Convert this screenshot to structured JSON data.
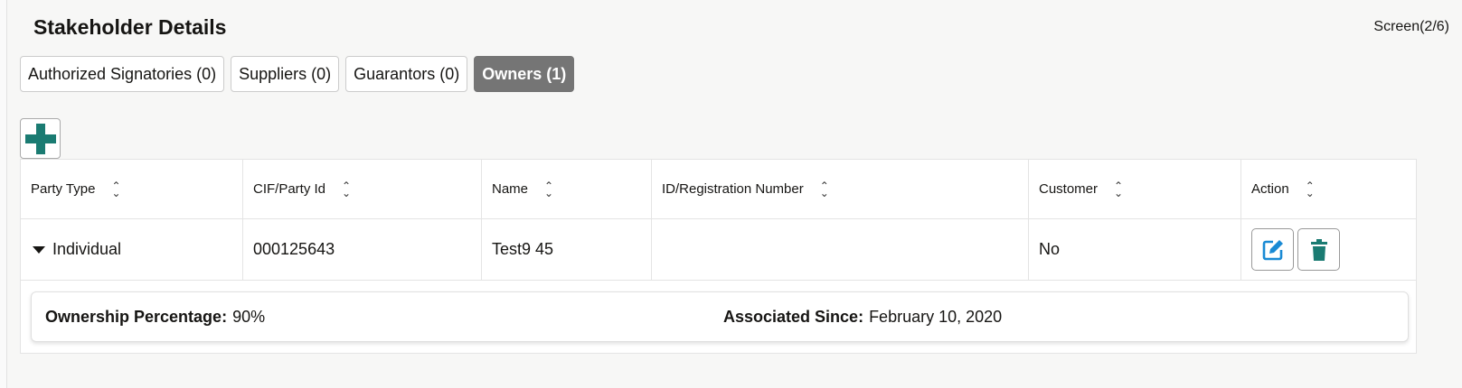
{
  "header": {
    "title": "Stakeholder Details",
    "screen": "Screen(2/6)"
  },
  "tabs": [
    {
      "label": "Authorized Signatories (0)"
    },
    {
      "label": "Suppliers (0)"
    },
    {
      "label": "Guarantors (0)"
    },
    {
      "label": "Owners (1)",
      "active": true
    }
  ],
  "table": {
    "columns": [
      "Party Type",
      "CIF/Party Id",
      "Name",
      "ID/Registration Number",
      "Customer",
      "Action"
    ],
    "rows": [
      {
        "party_type": "Individual",
        "cif": "000125643",
        "name": "Test9 45",
        "id_reg": "",
        "customer": "No"
      }
    ],
    "detail": {
      "ownership_label": "Ownership Percentage:",
      "ownership_value": "90%",
      "since_label": "Associated Since:",
      "since_value": "February 10, 2020"
    }
  },
  "colors": {
    "accent": "#1a7b72",
    "edit": "#1a8ad4",
    "active_tab": "#757575"
  }
}
